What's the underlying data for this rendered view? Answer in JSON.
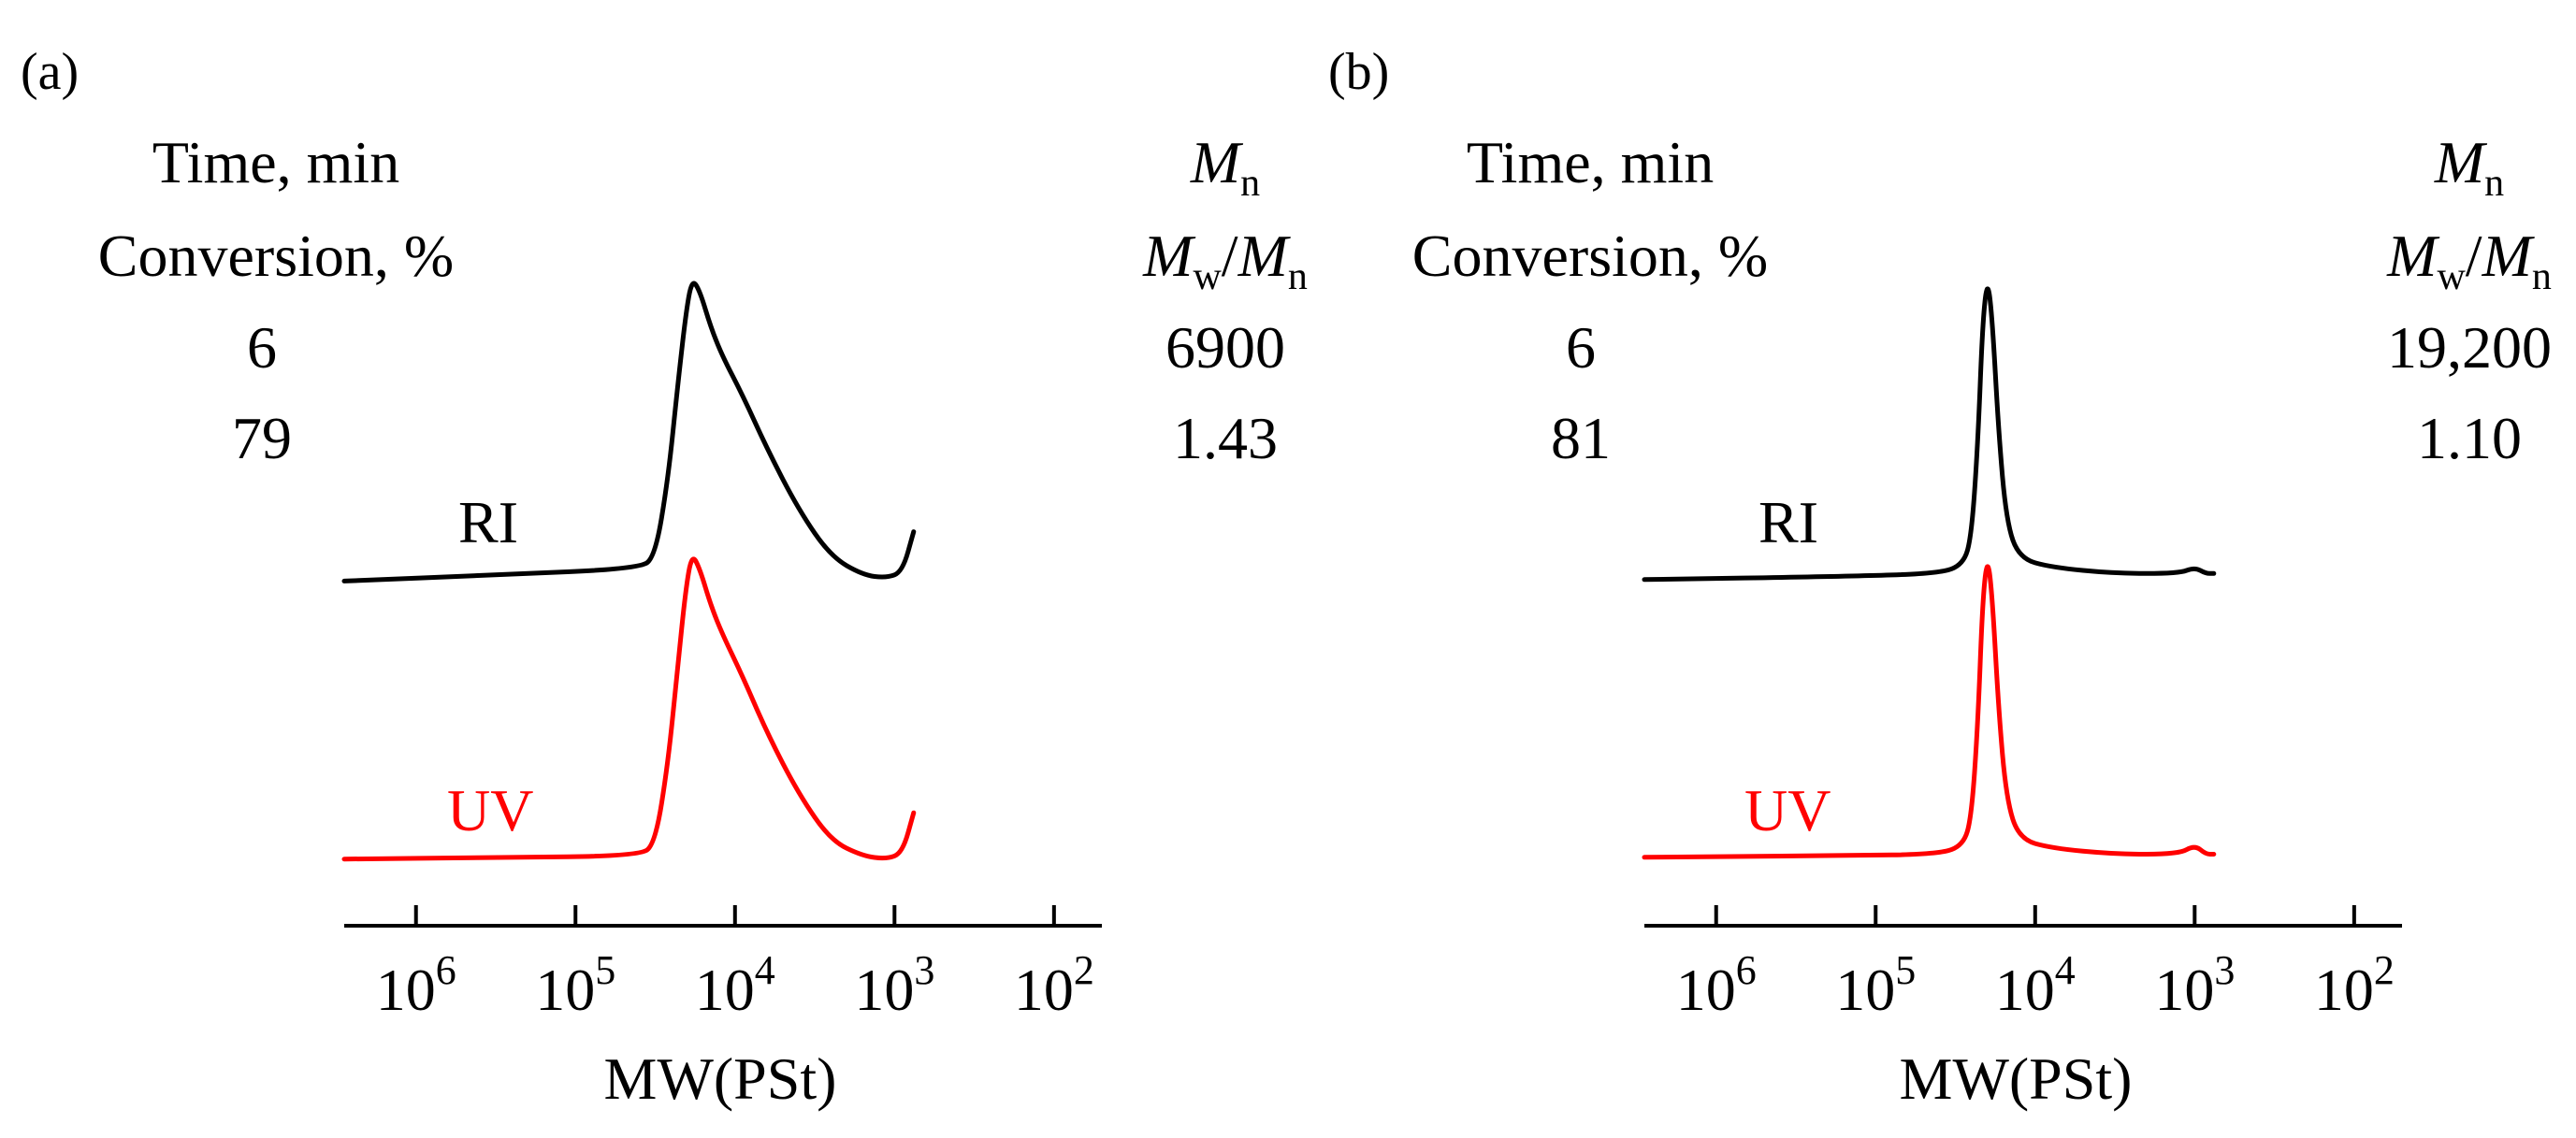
{
  "chart_data": [
    {
      "type": "line",
      "panel_label": "(a)",
      "header": {
        "left_line1": "Time, min",
        "left_line2": "Conversion, %",
        "time_value": "6",
        "conversion_value": "79",
        "mn_symbol": "M",
        "mn_sub": "n",
        "mwmn_m1": "M",
        "mwmn_sub1": "w",
        "mwmn_slash": "/",
        "mwmn_m2": "M",
        "mwmn_sub2": "n",
        "mn_value": "6900",
        "pdi_value": "1.43"
      },
      "xlabel": "MW(PSt)",
      "xaxis": {
        "scale": "log",
        "direction": "decreasing-left-to-right",
        "range_log10": [
          6.45,
          1.7
        ],
        "ticks": [
          {
            "log": 6,
            "base": "10",
            "exp": "6"
          },
          {
            "log": 5,
            "base": "10",
            "exp": "5"
          },
          {
            "log": 4,
            "base": "10",
            "exp": "4"
          },
          {
            "log": 3,
            "base": "10",
            "exp": "3"
          },
          {
            "log": 2,
            "base": "10",
            "exp": "2"
          }
        ]
      },
      "y_range": [
        0,
        1
      ],
      "series": [
        {
          "name": "RI",
          "label": "RI",
          "color": "#000000",
          "points": [
            [
              6.45,
              0.02
            ],
            [
              5.5,
              0.04
            ],
            [
              4.6,
              0.06
            ],
            [
              4.5,
              0.1
            ],
            [
              4.42,
              0.35
            ],
            [
              4.36,
              0.65
            ],
            [
              4.31,
              0.88
            ],
            [
              4.27,
              1.0
            ],
            [
              4.22,
              0.96
            ],
            [
              4.15,
              0.84
            ],
            [
              4.08,
              0.75
            ],
            [
              3.95,
              0.62
            ],
            [
              3.8,
              0.45
            ],
            [
              3.6,
              0.25
            ],
            [
              3.4,
              0.1
            ],
            [
              3.2,
              0.04
            ],
            [
              3.05,
              0.03
            ],
            [
              2.95,
              0.05
            ],
            [
              2.88,
              0.18
            ]
          ]
        },
        {
          "name": "UV",
          "label": "UV",
          "color": "#ff0000",
          "points": [
            [
              6.45,
              0.01
            ],
            [
              5.5,
              0.015
            ],
            [
              4.6,
              0.02
            ],
            [
              4.5,
              0.06
            ],
            [
              4.42,
              0.32
            ],
            [
              4.36,
              0.63
            ],
            [
              4.31,
              0.88
            ],
            [
              4.27,
              1.0
            ],
            [
              4.22,
              0.95
            ],
            [
              4.15,
              0.83
            ],
            [
              4.08,
              0.74
            ],
            [
              3.95,
              0.6
            ],
            [
              3.8,
              0.42
            ],
            [
              3.6,
              0.22
            ],
            [
              3.4,
              0.07
            ],
            [
              3.2,
              0.02
            ],
            [
              3.05,
              0.01
            ],
            [
              2.95,
              0.03
            ],
            [
              2.88,
              0.16
            ]
          ]
        }
      ]
    },
    {
      "type": "line",
      "panel_label": "(b)",
      "header": {
        "left_line1": "Time, min",
        "left_line2": "Conversion, %",
        "time_value": "6",
        "conversion_value": "81",
        "mn_symbol": "M",
        "mn_sub": "n",
        "mwmn_m1": "M",
        "mwmn_sub1": "w",
        "mwmn_slash": "/",
        "mwmn_m2": "M",
        "mwmn_sub2": "n",
        "mn_value": "19,200",
        "pdi_value": "1.10"
      },
      "xlabel": "MW(PSt)",
      "xaxis": {
        "scale": "log",
        "direction": "decreasing-left-to-right",
        "range_log10": [
          6.45,
          1.7
        ],
        "ticks": [
          {
            "log": 6,
            "base": "10",
            "exp": "6"
          },
          {
            "log": 5,
            "base": "10",
            "exp": "5"
          },
          {
            "log": 4,
            "base": "10",
            "exp": "4"
          },
          {
            "log": 3,
            "base": "10",
            "exp": "3"
          },
          {
            "log": 2,
            "base": "10",
            "exp": "2"
          }
        ]
      },
      "y_range": [
        0,
        1
      ],
      "series": [
        {
          "name": "RI",
          "label": "RI",
          "color": "#000000",
          "points": [
            [
              6.45,
              0.01
            ],
            [
              5.2,
              0.02
            ],
            [
              4.6,
              0.03
            ],
            [
              4.45,
              0.06
            ],
            [
              4.4,
              0.15
            ],
            [
              4.36,
              0.45
            ],
            [
              4.33,
              0.85
            ],
            [
              4.3,
              1.0
            ],
            [
              4.27,
              0.88
            ],
            [
              4.23,
              0.5
            ],
            [
              4.18,
              0.2
            ],
            [
              4.1,
              0.08
            ],
            [
              3.9,
              0.05
            ],
            [
              3.5,
              0.03
            ],
            [
              3.1,
              0.03
            ],
            [
              3.0,
              0.05
            ],
            [
              2.93,
              0.03
            ],
            [
              2.88,
              0.03
            ]
          ]
        },
        {
          "name": "UV",
          "label": "UV",
          "color": "#ff0000",
          "points": [
            [
              6.45,
              0.01
            ],
            [
              5.2,
              0.015
            ],
            [
              4.6,
              0.02
            ],
            [
              4.45,
              0.05
            ],
            [
              4.4,
              0.14
            ],
            [
              4.36,
              0.44
            ],
            [
              4.33,
              0.85
            ],
            [
              4.3,
              1.0
            ],
            [
              4.27,
              0.88
            ],
            [
              4.23,
              0.5
            ],
            [
              4.18,
              0.2
            ],
            [
              4.1,
              0.07
            ],
            [
              3.9,
              0.04
            ],
            [
              3.5,
              0.02
            ],
            [
              3.1,
              0.02
            ],
            [
              3.0,
              0.05
            ],
            [
              2.93,
              0.02
            ],
            [
              2.88,
              0.02
            ]
          ]
        }
      ]
    }
  ]
}
